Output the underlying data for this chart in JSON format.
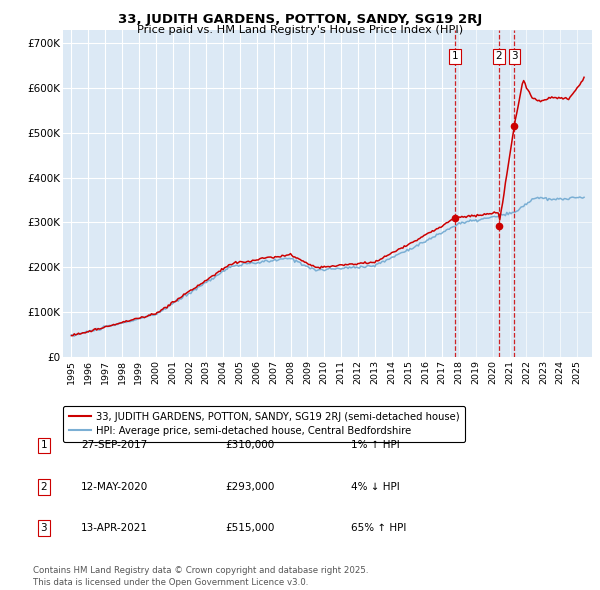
{
  "title1": "33, JUDITH GARDENS, POTTON, SANDY, SG19 2RJ",
  "title2": "Price paid vs. HM Land Registry's House Price Index (HPI)",
  "background_color": "#ffffff",
  "plot_bg_color": "#dce9f5",
  "grid_color": "#ffffff",
  "line_color_red": "#cc0000",
  "line_color_blue": "#7bafd4",
  "yticks": [
    0,
    100000,
    200000,
    300000,
    400000,
    500000,
    600000,
    700000
  ],
  "ylabels": [
    "£0",
    "£100K",
    "£200K",
    "£300K",
    "£400K",
    "£500K",
    "£600K",
    "£700K"
  ],
  "sale_prices": [
    310000,
    293000,
    515000
  ],
  "sale_labels": [
    "1",
    "2",
    "3"
  ],
  "vline_color": "#cc0000",
  "legend_entries": [
    "33, JUDITH GARDENS, POTTON, SANDY, SG19 2RJ (semi-detached house)",
    "HPI: Average price, semi-detached house, Central Bedfordshire"
  ],
  "table_rows": [
    [
      "1",
      "27-SEP-2017",
      "£310,000",
      "1% ↑ HPI"
    ],
    [
      "2",
      "12-MAY-2020",
      "£293,000",
      "4% ↓ HPI"
    ],
    [
      "3",
      "13-APR-2021",
      "£515,000",
      "65% ↑ HPI"
    ]
  ],
  "footer": "Contains HM Land Registry data © Crown copyright and database right 2025.\nThis data is licensed under the Open Government Licence v3.0.",
  "xlim_start": 1994.5,
  "xlim_end": 2025.9,
  "ylim_top": 730000
}
